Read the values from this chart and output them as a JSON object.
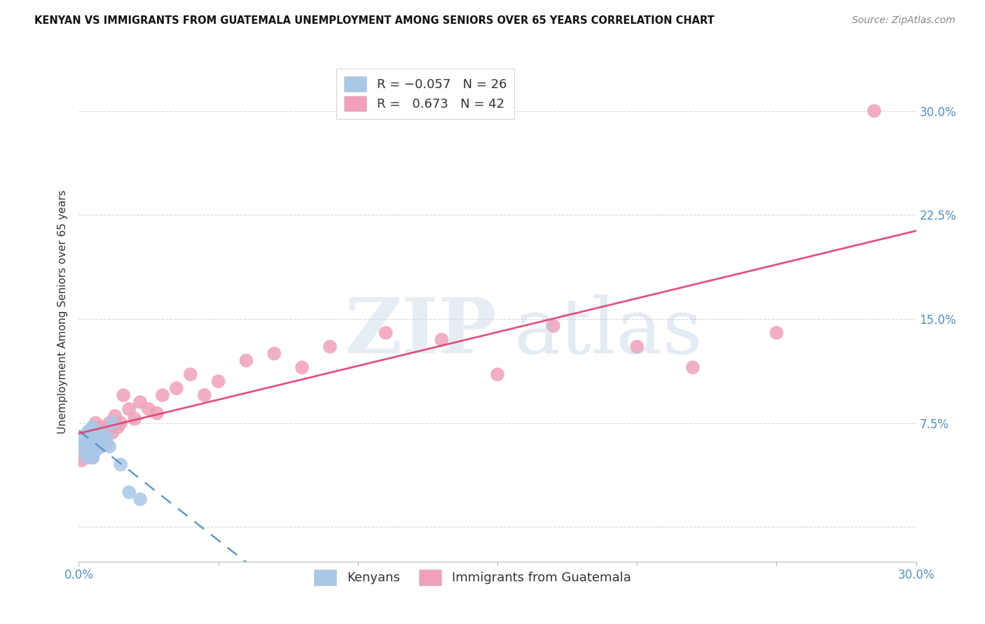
{
  "title": "KENYAN VS IMMIGRANTS FROM GUATEMALA UNEMPLOYMENT AMONG SENIORS OVER 65 YEARS CORRELATION CHART",
  "source": "Source: ZipAtlas.com",
  "ylabel": "Unemployment Among Seniors over 65 years",
  "xlim": [
    0.0,
    0.3
  ],
  "ylim": [
    -0.025,
    0.335
  ],
  "blue_R": -0.057,
  "blue_N": 26,
  "pink_R": 0.673,
  "pink_N": 42,
  "background_color": "#ffffff",
  "grid_color": "#d0d0d0",
  "blue_color": "#a8c8e8",
  "blue_line_color": "#5090c8",
  "pink_color": "#f0a0b8",
  "pink_line_color": "#e04070",
  "ytick_vals": [
    0.0,
    0.075,
    0.15,
    0.225,
    0.3
  ],
  "ytick_labels": [
    "",
    "7.5%",
    "15.0%",
    "22.5%",
    "30.0%"
  ],
  "xtick_vals": [
    0.0,
    0.05,
    0.1,
    0.15,
    0.2,
    0.25,
    0.3
  ],
  "xtick_labels": [
    "0.0%",
    "",
    "",
    "",
    "",
    "",
    "30.0%"
  ],
  "kenyan_x": [
    0.001,
    0.002,
    0.002,
    0.003,
    0.003,
    0.003,
    0.004,
    0.004,
    0.004,
    0.005,
    0.005,
    0.005,
    0.006,
    0.006,
    0.006,
    0.007,
    0.007,
    0.008,
    0.008,
    0.009,
    0.01,
    0.011,
    0.012,
    0.015,
    0.018,
    0.022
  ],
  "kenyan_y": [
    0.055,
    0.06,
    0.065,
    0.05,
    0.058,
    0.068,
    0.055,
    0.062,
    0.07,
    0.05,
    0.06,
    0.072,
    0.055,
    0.062,
    0.068,
    0.06,
    0.065,
    0.058,
    0.068,
    0.062,
    0.065,
    0.058,
    0.075,
    0.045,
    0.025,
    0.02
  ],
  "guatemala_x": [
    0.001,
    0.002,
    0.003,
    0.004,
    0.005,
    0.005,
    0.006,
    0.006,
    0.007,
    0.008,
    0.008,
    0.009,
    0.01,
    0.01,
    0.011,
    0.012,
    0.013,
    0.014,
    0.015,
    0.016,
    0.018,
    0.02,
    0.022,
    0.025,
    0.028,
    0.03,
    0.035,
    0.04,
    0.045,
    0.05,
    0.06,
    0.07,
    0.08,
    0.09,
    0.11,
    0.13,
    0.15,
    0.17,
    0.2,
    0.22,
    0.25,
    0.285
  ],
  "guatemala_y": [
    0.048,
    0.052,
    0.058,
    0.055,
    0.05,
    0.068,
    0.062,
    0.075,
    0.06,
    0.058,
    0.072,
    0.065,
    0.06,
    0.07,
    0.075,
    0.068,
    0.08,
    0.072,
    0.075,
    0.095,
    0.085,
    0.078,
    0.09,
    0.085,
    0.082,
    0.095,
    0.1,
    0.11,
    0.095,
    0.105,
    0.12,
    0.125,
    0.115,
    0.13,
    0.14,
    0.135,
    0.11,
    0.145,
    0.13,
    0.115,
    0.14,
    0.3
  ]
}
